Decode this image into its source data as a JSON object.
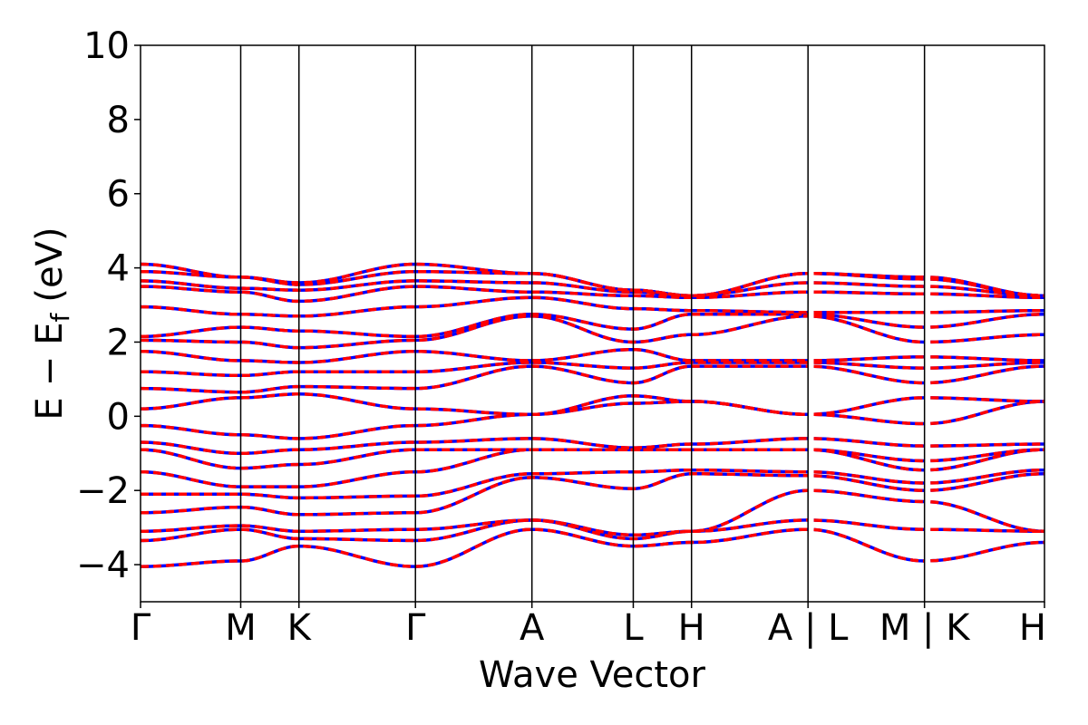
{
  "chart_data": {
    "type": "line",
    "xlabel": "Wave Vector",
    "ylabel_parts": {
      "a": "E",
      "minus": "−",
      "b": "E",
      "sub": "f",
      "unit": "(eV)"
    },
    "ylim": [
      -5,
      10
    ],
    "yticks": [
      10,
      8,
      6,
      4,
      2,
      0,
      -2,
      -4
    ],
    "ytick_labels": [
      "10",
      "8",
      "6",
      "4",
      "2",
      "0",
      "−2",
      "−4"
    ],
    "xlim": [
      0,
      7.76
    ],
    "kpath": [
      {
        "label": "Γ",
        "x": 0.0
      },
      {
        "label": "M",
        "x": 0.86
      },
      {
        "label": "K",
        "x": 1.36
      },
      {
        "label": "Γ",
        "x": 2.36
      },
      {
        "label": "A",
        "x": 3.36
      },
      {
        "label": "L",
        "x": 4.23
      },
      {
        "label": "H",
        "x": 4.73
      },
      {
        "label": "A | L",
        "x": 5.73
      },
      {
        "label": "M | K",
        "x": 6.73
      },
      {
        "label": "H",
        "x": 7.76
      }
    ],
    "segment_breaks": [
      5.73,
      6.73
    ],
    "series": [
      {
        "style": "solid",
        "color": "#0000ff"
      },
      {
        "style": "dashed",
        "color": "#ff0000"
      }
    ],
    "bands_at_kpoints": [
      [
        -4.05,
        -3.9,
        -3.5,
        -4.05,
        -3.05,
        -3.5,
        -3.4,
        -3.05,
        -3.9,
        -3.4
      ],
      [
        -3.35,
        -3.05,
        -3.3,
        -3.35,
        -2.8,
        -3.3,
        -3.1,
        -2.8,
        -3.05,
        -3.1
      ],
      [
        -3.1,
        -2.95,
        -3.1,
        -3.05,
        -2.8,
        -3.2,
        -3.1,
        -2.0,
        -2.3,
        -3.1
      ],
      [
        -2.6,
        -2.45,
        -2.65,
        -2.6,
        -1.65,
        -1.95,
        -1.55,
        -1.6,
        -2.0,
        -1.55
      ],
      [
        -2.1,
        -2.1,
        -2.2,
        -2.15,
        -1.55,
        -1.5,
        -1.45,
        -1.5,
        -1.8,
        -1.45
      ],
      [
        -1.5,
        -1.9,
        -1.9,
        -1.5,
        -0.9,
        -0.9,
        -0.9,
        -0.9,
        -1.45,
        -0.9
      ],
      [
        -0.9,
        -1.4,
        -1.3,
        -0.9,
        -0.9,
        -0.9,
        -0.9,
        -0.9,
        -1.2,
        -0.9
      ],
      [
        -0.7,
        -1.0,
        -0.9,
        -0.7,
        -0.6,
        -0.85,
        -0.75,
        -0.6,
        -0.8,
        -0.75
      ],
      [
        -0.25,
        -0.5,
        -0.6,
        -0.25,
        0.05,
        0.35,
        0.4,
        0.05,
        -0.2,
        0.4
      ],
      [
        0.2,
        0.5,
        0.6,
        0.2,
        0.05,
        0.55,
        0.4,
        0.05,
        0.5,
        0.4
      ],
      [
        0.75,
        0.65,
        0.8,
        0.75,
        1.35,
        0.9,
        1.35,
        1.35,
        0.9,
        1.35
      ],
      [
        1.2,
        1.1,
        1.2,
        1.2,
        1.45,
        1.3,
        1.45,
        1.45,
        1.3,
        1.45
      ],
      [
        1.75,
        1.5,
        1.45,
        1.75,
        1.5,
        1.8,
        1.5,
        1.5,
        1.6,
        1.5
      ],
      [
        2.05,
        2.0,
        1.85,
        2.05,
        2.7,
        2.0,
        2.2,
        2.7,
        2.0,
        2.2
      ],
      [
        2.15,
        2.4,
        2.3,
        2.15,
        2.75,
        2.35,
        2.75,
        2.75,
        2.4,
        2.75
      ],
      [
        2.95,
        2.75,
        2.7,
        2.95,
        3.2,
        2.9,
        2.85,
        2.8,
        2.8,
        2.85
      ],
      [
        3.5,
        3.35,
        3.1,
        3.5,
        3.35,
        3.25,
        3.2,
        3.35,
        3.3,
        3.2
      ],
      [
        3.65,
        3.45,
        3.4,
        3.65,
        3.6,
        3.35,
        3.25,
        3.6,
        3.5,
        3.25
      ],
      [
        3.9,
        3.75,
        3.55,
        3.9,
        3.85,
        3.4,
        3.25,
        3.85,
        3.7,
        3.25
      ],
      [
        4.1,
        3.75,
        3.6,
        4.1,
        3.85,
        3.4,
        3.25,
        3.85,
        3.75,
        3.25
      ]
    ]
  }
}
